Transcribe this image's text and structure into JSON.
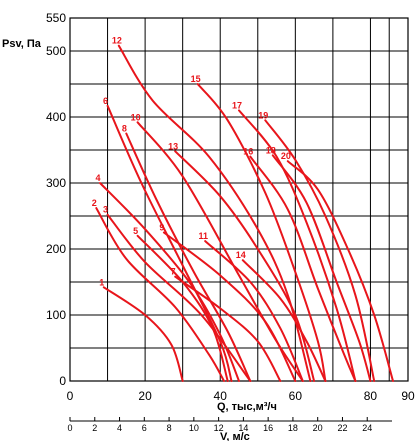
{
  "chart_data": {
    "type": "line",
    "ylabel": "Psv, Па",
    "xlabel": "Q, тыс,м³/ч",
    "xlabel2": "V, м/с",
    "xlim": [
      0,
      90
    ],
    "ylim": [
      0,
      550
    ],
    "x_ticks": [
      0,
      20,
      40,
      60,
      80,
      90
    ],
    "x_ticks_minor_grid": [
      10,
      30,
      50,
      70,
      85
    ],
    "y_ticks": [
      0,
      100,
      200,
      300,
      400,
      500,
      550
    ],
    "y_grid_minor": [
      50,
      150,
      250,
      350,
      450
    ],
    "x2_range": [
      0,
      26
    ],
    "x2_ticks": [
      0,
      2,
      4,
      6,
      8,
      10,
      12,
      14,
      16,
      18,
      20,
      22,
      24
    ],
    "curve_color": "#e8151b",
    "grid_color": "#000000",
    "series": [
      {
        "name": "1",
        "points": [
          [
            9,
            142
          ],
          [
            20,
            100
          ],
          [
            27,
            55
          ],
          [
            30,
            0
          ]
        ]
      },
      {
        "name": "2",
        "points": [
          [
            7,
            262
          ],
          [
            15,
            185
          ],
          [
            28,
            112
          ],
          [
            37,
            40
          ],
          [
            41,
            0
          ]
        ]
      },
      {
        "name": "3",
        "points": [
          [
            10,
            252
          ],
          [
            20,
            180
          ],
          [
            35,
            100
          ],
          [
            48,
            0
          ]
        ]
      },
      {
        "name": "4",
        "points": [
          [
            8,
            300
          ],
          [
            20,
            230
          ],
          [
            32,
            148
          ],
          [
            40,
            70
          ],
          [
            45,
            0
          ]
        ]
      },
      {
        "name": "5",
        "points": [
          [
            18,
            220
          ],
          [
            30,
            150
          ],
          [
            38,
            80
          ],
          [
            42,
            0
          ]
        ]
      },
      {
        "name": "6",
        "points": [
          [
            10,
            417
          ],
          [
            19,
            300
          ],
          [
            30,
            175
          ],
          [
            40,
            60
          ],
          [
            43,
            0
          ]
        ]
      },
      {
        "name": "7",
        "points": [
          [
            28,
            158
          ],
          [
            40,
            110
          ],
          [
            50,
            60
          ],
          [
            56,
            0
          ]
        ]
      },
      {
        "name": "8",
        "points": [
          [
            15,
            375
          ],
          [
            23,
            275
          ],
          [
            33,
            165
          ],
          [
            42,
            75
          ],
          [
            48,
            0
          ]
        ]
      },
      {
        "name": "9",
        "points": [
          [
            25,
            225
          ],
          [
            40,
            160
          ],
          [
            52,
            90
          ],
          [
            60,
            0
          ]
        ]
      },
      {
        "name": "10",
        "points": [
          [
            18,
            392
          ],
          [
            30,
            310
          ],
          [
            45,
            160
          ],
          [
            55,
            60
          ],
          [
            62,
            0
          ]
        ]
      },
      {
        "name": "11",
        "points": [
          [
            36,
            212
          ],
          [
            48,
            150
          ],
          [
            56,
            80
          ],
          [
            62,
            0
          ]
        ]
      },
      {
        "name": "12",
        "points": [
          [
            13,
            508
          ],
          [
            22,
            425
          ],
          [
            37,
            340
          ],
          [
            50,
            230
          ],
          [
            58,
            130
          ],
          [
            64,
            0
          ]
        ]
      },
      {
        "name": "13",
        "points": [
          [
            28,
            348
          ],
          [
            40,
            280
          ],
          [
            50,
            200
          ],
          [
            60,
            100
          ],
          [
            65,
            0
          ]
        ]
      },
      {
        "name": "14",
        "points": [
          [
            46,
            183
          ],
          [
            56,
            125
          ],
          [
            63,
            60
          ],
          [
            68,
            0
          ]
        ]
      },
      {
        "name": "15",
        "points": [
          [
            34,
            450
          ],
          [
            42,
            395
          ],
          [
            52,
            285
          ],
          [
            60,
            165
          ],
          [
            66,
            60
          ],
          [
            68,
            0
          ]
        ]
      },
      {
        "name": "16",
        "points": [
          [
            48,
            340
          ],
          [
            58,
            260
          ],
          [
            66,
            140
          ],
          [
            73,
            40
          ],
          [
            76,
            0
          ]
        ]
      },
      {
        "name": "17",
        "points": [
          [
            45,
            410
          ],
          [
            55,
            340
          ],
          [
            63,
            240
          ],
          [
            71,
            110
          ],
          [
            76,
            0
          ]
        ]
      },
      {
        "name": "18",
        "points": [
          [
            54,
            342
          ],
          [
            63,
            270
          ],
          [
            71,
            150
          ],
          [
            77,
            60
          ],
          [
            80,
            0
          ]
        ]
      },
      {
        "name": "19",
        "points": [
          [
            52,
            395
          ],
          [
            60,
            335
          ],
          [
            68,
            250
          ],
          [
            76,
            130
          ],
          [
            81,
            0
          ]
        ]
      },
      {
        "name": "20",
        "points": [
          [
            58,
            333
          ],
          [
            66,
            290
          ],
          [
            74,
            200
          ],
          [
            81,
            100
          ],
          [
            86,
            0
          ]
        ]
      }
    ]
  }
}
